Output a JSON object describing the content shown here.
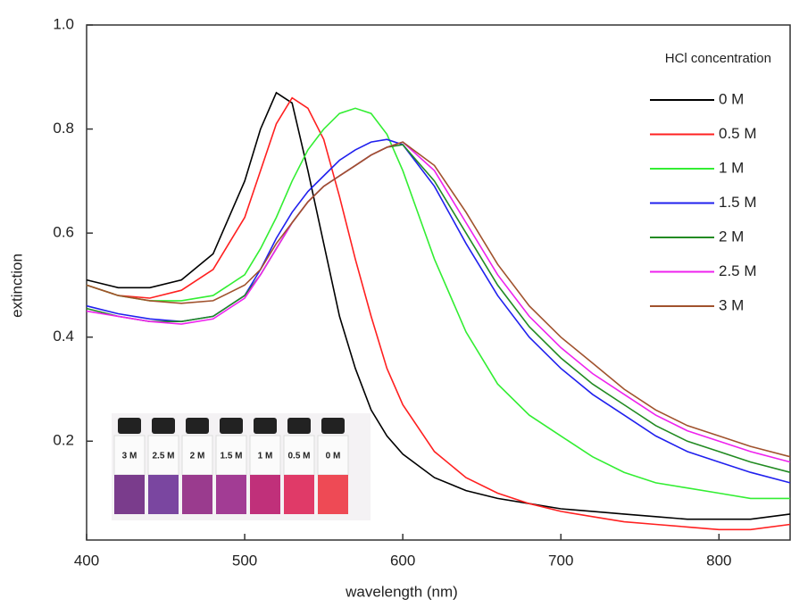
{
  "chart_data": {
    "type": "line",
    "xlabel": "wavelength (nm)",
    "ylabel": "extinction",
    "legend_title": "HCl concentration",
    "legend_position": "upper right",
    "xlim": [
      400,
      845
    ],
    "ylim": [
      0.01,
      1.0
    ],
    "xticks": [
      400,
      500,
      600,
      700,
      800
    ],
    "yticks": [
      0.2,
      0.4,
      0.6,
      0.8,
      {
        "value": 1,
        "label": "1.0"
      }
    ],
    "x": [
      400,
      420,
      440,
      460,
      480,
      500,
      510,
      520,
      530,
      540,
      550,
      560,
      570,
      580,
      590,
      600,
      620,
      640,
      660,
      680,
      700,
      720,
      740,
      760,
      780,
      800,
      820,
      845
    ],
    "series": [
      {
        "name": "0 M",
        "color": "#000000",
        "values": [
          0.51,
          0.495,
          0.495,
          0.51,
          0.56,
          0.7,
          0.8,
          0.87,
          0.85,
          0.72,
          0.58,
          0.44,
          0.34,
          0.26,
          0.21,
          0.175,
          0.13,
          0.105,
          0.09,
          0.08,
          0.07,
          0.065,
          0.06,
          0.055,
          0.05,
          0.05,
          0.05,
          0.06
        ]
      },
      {
        "name": "0.5 M",
        "color": "#ff2020",
        "values": [
          0.5,
          0.48,
          0.475,
          0.49,
          0.53,
          0.63,
          0.72,
          0.81,
          0.86,
          0.84,
          0.78,
          0.67,
          0.55,
          0.44,
          0.34,
          0.27,
          0.18,
          0.13,
          0.1,
          0.08,
          0.065,
          0.055,
          0.045,
          0.04,
          0.035,
          0.03,
          0.03,
          0.04
        ]
      },
      {
        "name": "1 M",
        "color": "#33ee33",
        "values": [
          0.5,
          0.48,
          0.47,
          0.47,
          0.48,
          0.52,
          0.57,
          0.63,
          0.7,
          0.76,
          0.8,
          0.83,
          0.84,
          0.83,
          0.79,
          0.72,
          0.55,
          0.41,
          0.31,
          0.25,
          0.21,
          0.17,
          0.14,
          0.12,
          0.11,
          0.1,
          0.09,
          0.09
        ]
      },
      {
        "name": "1.5 M",
        "color": "#2020ee",
        "values": [
          0.46,
          0.445,
          0.435,
          0.43,
          0.44,
          0.48,
          0.53,
          0.59,
          0.64,
          0.68,
          0.71,
          0.74,
          0.76,
          0.775,
          0.78,
          0.77,
          0.69,
          0.58,
          0.48,
          0.4,
          0.34,
          0.29,
          0.25,
          0.21,
          0.18,
          0.16,
          0.14,
          0.12
        ]
      },
      {
        "name": "2 M",
        "color": "#228b22",
        "values": [
          0.455,
          0.44,
          0.43,
          0.43,
          0.44,
          0.48,
          0.52,
          0.57,
          0.62,
          0.66,
          0.69,
          0.71,
          0.73,
          0.75,
          0.765,
          0.77,
          0.7,
          0.6,
          0.5,
          0.42,
          0.36,
          0.31,
          0.27,
          0.23,
          0.2,
          0.18,
          0.16,
          0.14
        ]
      },
      {
        "name": "2.5 M",
        "color": "#ee22ee",
        "values": [
          0.45,
          0.44,
          0.43,
          0.425,
          0.435,
          0.475,
          0.52,
          0.57,
          0.62,
          0.66,
          0.69,
          0.71,
          0.73,
          0.75,
          0.765,
          0.775,
          0.72,
          0.62,
          0.52,
          0.44,
          0.38,
          0.33,
          0.29,
          0.25,
          0.22,
          0.2,
          0.18,
          0.16
        ]
      },
      {
        "name": "3 M",
        "color": "#a0522d",
        "values": [
          0.5,
          0.48,
          0.47,
          0.465,
          0.47,
          0.5,
          0.53,
          0.58,
          0.62,
          0.66,
          0.69,
          0.71,
          0.73,
          0.75,
          0.765,
          0.775,
          0.73,
          0.64,
          0.54,
          0.46,
          0.4,
          0.35,
          0.3,
          0.26,
          0.23,
          0.21,
          0.19,
          0.17
        ]
      }
    ],
    "inset_labels": [
      "3 M",
      "2.5 M",
      "2 M",
      "1.5 M",
      "1 M",
      "0.5 M",
      "0 M"
    ]
  }
}
